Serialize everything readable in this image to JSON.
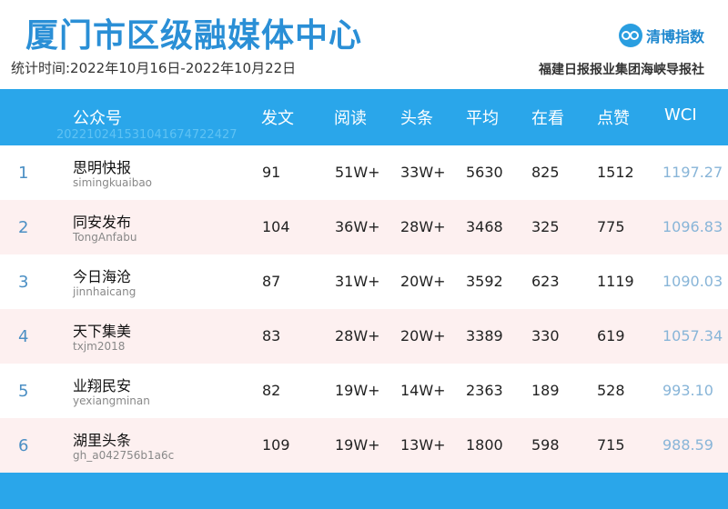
{
  "header": {
    "title": "厦门市区级融媒体中心",
    "period": "统计时间:2022年10月16日-2022年10月22日",
    "brand_name": "清博指数",
    "publisher": "福建日报报业集团海峡导报社"
  },
  "table": {
    "columns": [
      "公众号",
      "发文",
      "阅读",
      "头条",
      "平均",
      "在看",
      "点赞",
      "WCI"
    ],
    "header_sub": "20221024153104167472242​7",
    "rows": [
      {
        "rank": "1",
        "name": "思明快报",
        "id": "simingkuaibao",
        "posts": "91",
        "reads": "51W+",
        "headline": "33W+",
        "avg": "5630",
        "watching": "825",
        "likes": "1512",
        "wci": "1197.27"
      },
      {
        "rank": "2",
        "name": "同安发布",
        "id": "TongAnfabu",
        "posts": "104",
        "reads": "36W+",
        "headline": "28W+",
        "avg": "3468",
        "watching": "325",
        "likes": "775",
        "wci": "1096.83"
      },
      {
        "rank": "3",
        "name": "今日海沧",
        "id": "jinnhaicang",
        "posts": "87",
        "reads": "31W+",
        "headline": "20W+",
        "avg": "3592",
        "watching": "623",
        "likes": "1119",
        "wci": "1090.03"
      },
      {
        "rank": "4",
        "name": "天下集美",
        "id": "txjm2018",
        "posts": "83",
        "reads": "28W+",
        "headline": "20W+",
        "avg": "3389",
        "watching": "330",
        "likes": "619",
        "wci": "1057.34"
      },
      {
        "rank": "5",
        "name": "业翔民安",
        "id": "yexiangminan",
        "posts": "82",
        "reads": "19W+",
        "headline": "14W+",
        "avg": "2363",
        "watching": "189",
        "likes": "528",
        "wci": "993.10"
      },
      {
        "rank": "6",
        "name": "湖里头条",
        "id": "gh_a042756b1a6c",
        "posts": "109",
        "reads": "19W+",
        "headline": "13W+",
        "avg": "1800",
        "watching": "598",
        "likes": "715",
        "wci": "988.59"
      }
    ]
  },
  "colors": {
    "accent": "#2aa6ea",
    "title": "#2a8fd6",
    "row_alt": "#fdf0f0",
    "wci_text": "#88b5d8"
  },
  "icons": {
    "brand": "qingbo-logo-icon"
  }
}
